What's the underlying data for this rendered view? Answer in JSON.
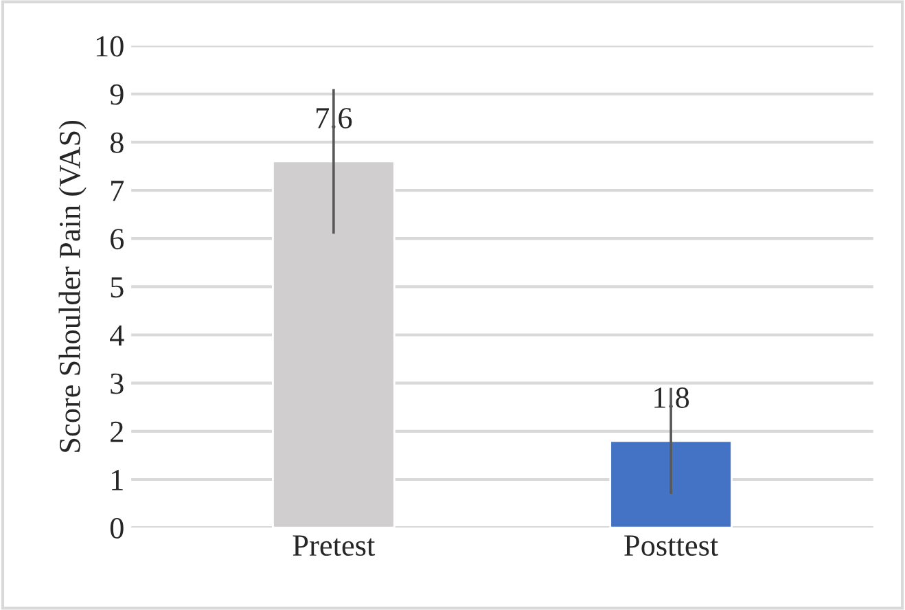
{
  "chart_data": {
    "type": "bar",
    "ylabel": "Score Shoulder Pain (VAS)",
    "categories": [
      "Pretest",
      "Posttest"
    ],
    "values": [
      7.6,
      1.8
    ],
    "colors": [
      "#d0cece",
      "#4472c4"
    ],
    "errors": [
      1.5,
      1.1
    ],
    "data_labels": true,
    "ylim": [
      0,
      10
    ],
    "yticks": [
      0,
      1,
      2,
      3,
      4,
      5,
      6,
      7,
      8,
      9,
      10
    ],
    "grid": "y",
    "legend": false
  }
}
